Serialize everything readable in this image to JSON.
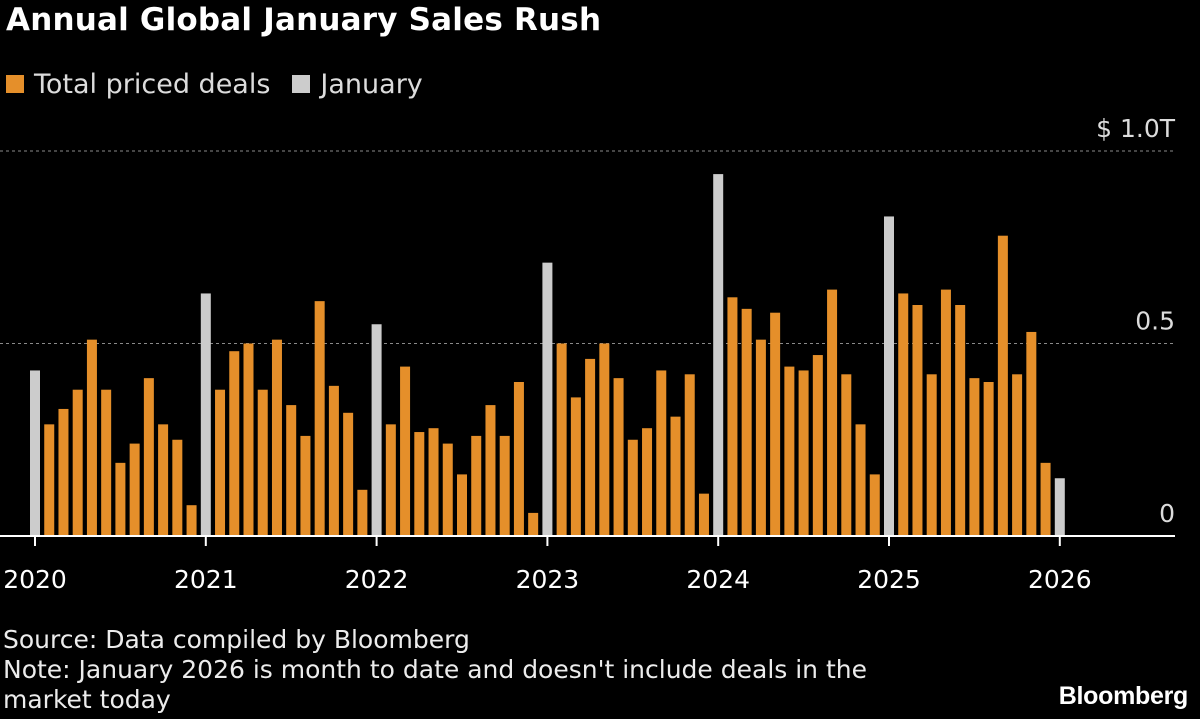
{
  "title": "Annual Global January Sales Rush",
  "legend": [
    {
      "label": "Total priced deals",
      "color": "#e58f2a"
    },
    {
      "label": "January",
      "color": "#cccccc"
    }
  ],
  "chart_data": {
    "type": "bar",
    "title": "Annual Global January Sales Rush",
    "xlabel": "",
    "ylabel": "",
    "unit": "$ trillions",
    "ylim": [
      0,
      1.0
    ],
    "yticks": [
      {
        "value": 1.0,
        "label": "$ 1.0T"
      },
      {
        "value": 0.5,
        "label": "0.5"
      },
      {
        "value": 0,
        "label": "0"
      }
    ],
    "xticks": [
      "2020",
      "2021",
      "2022",
      "2023",
      "2024",
      "2025",
      "2026"
    ],
    "series": [
      {
        "name": "Total priced deals",
        "color": "#e58f2a"
      },
      {
        "name": "January",
        "color": "#cccccc"
      }
    ],
    "monthly_values": [
      [
        0.43,
        0.29,
        0.33,
        0.38,
        0.51,
        0.38,
        0.19,
        0.24,
        0.41,
        0.29,
        0.25,
        0.08
      ],
      [
        0.63,
        0.38,
        0.48,
        0.5,
        0.38,
        0.51,
        0.34,
        0.26,
        0.61,
        0.39,
        0.32,
        0.12
      ],
      [
        0.55,
        0.29,
        0.44,
        0.27,
        0.28,
        0.24,
        0.16,
        0.26,
        0.34,
        0.26,
        0.4,
        0.06
      ],
      [
        0.71,
        0.5,
        0.36,
        0.46,
        0.5,
        0.41,
        0.25,
        0.28,
        0.43,
        0.31,
        0.42,
        0.11
      ],
      [
        0.94,
        0.62,
        0.59,
        0.51,
        0.58,
        0.44,
        0.43,
        0.47,
        0.64,
        0.42,
        0.29,
        0.16
      ],
      [
        0.83,
        0.63,
        0.6,
        0.42,
        0.64,
        0.6,
        0.41,
        0.4,
        0.78,
        0.42,
        0.53,
        0.19
      ],
      [
        0.15
      ]
    ]
  },
  "footer": {
    "source": "Source: Data compiled by Bloomberg",
    "note_line1": "Note: January 2026 is month to date and doesn't include deals in the",
    "note_line2": "market today"
  },
  "brand": "Bloomberg"
}
